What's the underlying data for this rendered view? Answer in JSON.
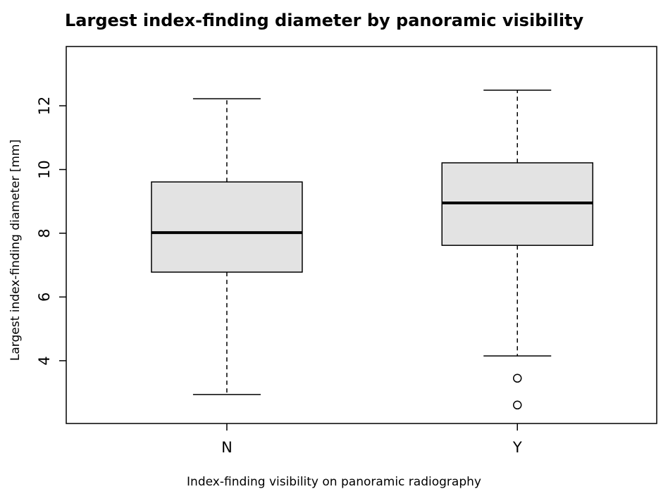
{
  "chart_data": {
    "type": "box",
    "title": "Largest index-finding diameter by panoramic visibility",
    "xlabel": "Index-finding visibility on panoramic radiography",
    "ylabel": "Largest index-finding diameter [mm]",
    "categories": [
      "N",
      "Y"
    ],
    "boxes": [
      {
        "whisker_low": 2.94,
        "q1": 6.78,
        "median": 8.02,
        "q3": 9.61,
        "whisker_high": 12.22,
        "outliers": []
      },
      {
        "whisker_low": 4.15,
        "q1": 7.62,
        "median": 8.95,
        "q3": 10.21,
        "whisker_high": 12.49,
        "outliers": [
          3.45,
          2.61
        ]
      }
    ],
    "color": "#e3e3e3",
    "ylim": [
      2.03,
      13.86
    ],
    "yticks": [
      4,
      6,
      8,
      10,
      12
    ]
  }
}
